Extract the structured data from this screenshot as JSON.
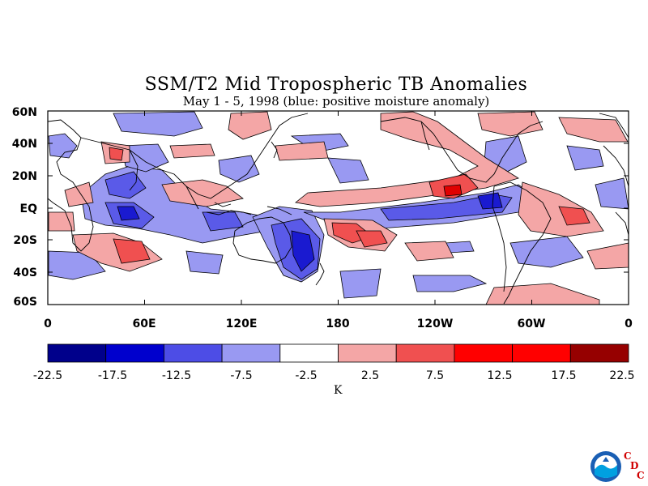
{
  "title": "SSM/T2 Mid Tropospheric TB Anomalies",
  "subtitle": "May 1 - 5, 1998 (blue: positive moisture anomaly)",
  "lat_labels": [
    "60N",
    "40N",
    "20N",
    "EQ",
    "20S",
    "40S",
    "60S"
  ],
  "lon_labels": [
    "0",
    "60E",
    "120E",
    "180",
    "120W",
    "60W",
    "0"
  ],
  "colorbar": {
    "levels": [
      "-22.5",
      "-17.5",
      "-12.5",
      "-7.5",
      "-2.5",
      "2.5",
      "7.5",
      "12.5",
      "17.5",
      "22.5"
    ],
    "colors": [
      "#00008b",
      "#0000cd",
      "#4d4de6",
      "#9999f2",
      "#ffffff",
      "#f4a6a6",
      "#f05050",
      "#ff0000",
      "#ff0000",
      "#960000"
    ],
    "unit": "K"
  },
  "palette": {
    "blue_light": "#9999f2",
    "blue_mid": "#5a5ae8",
    "blue_dark": "#1a1ad0",
    "blue_darkest": "#00008b",
    "red_light": "#f4a6a6",
    "red_mid": "#f05050",
    "red_dark": "#e00000"
  },
  "logo": {
    "c1": "C",
    "d": "D",
    "c2": "C"
  }
}
